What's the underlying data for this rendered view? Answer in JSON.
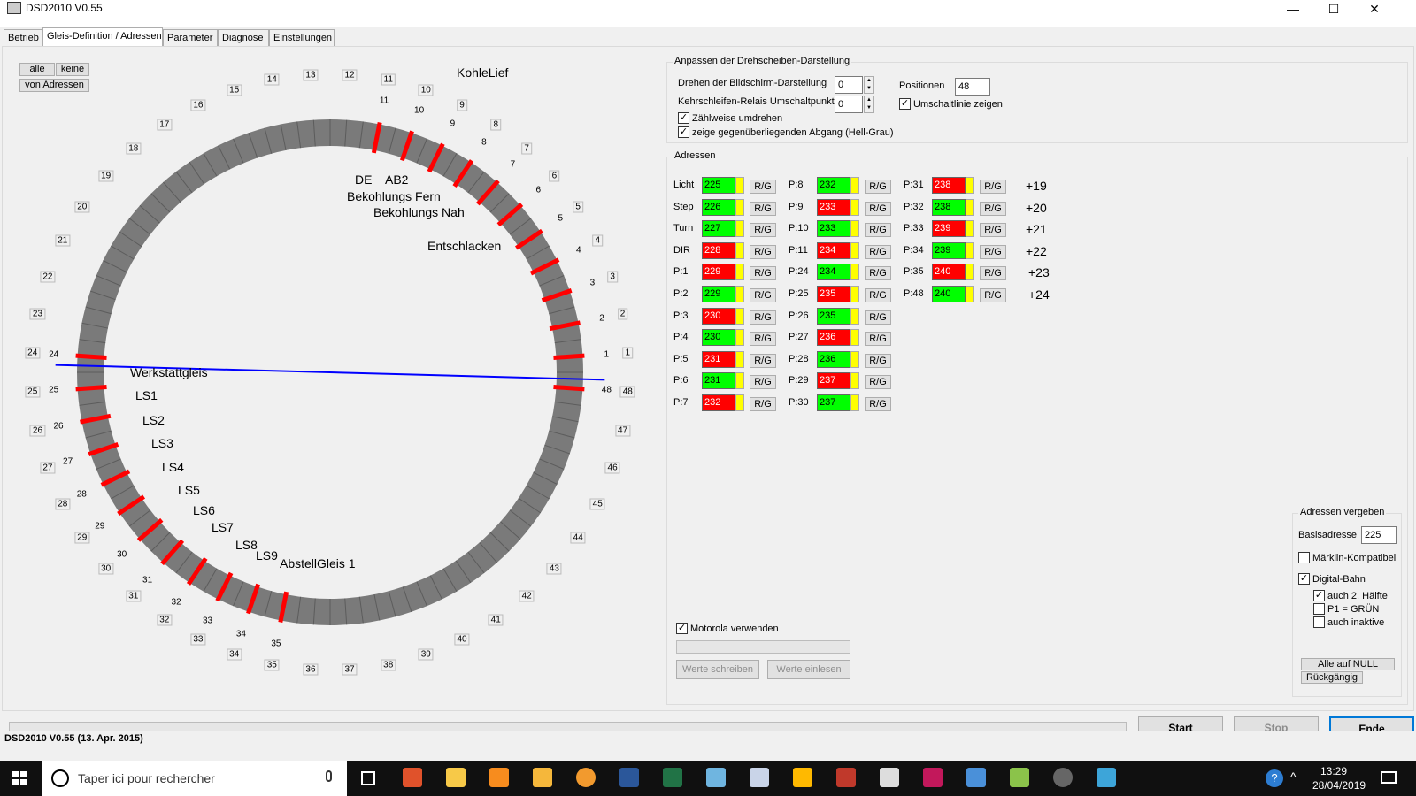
{
  "window": {
    "title": "DSD2010 V0.55",
    "minimize": "—",
    "maximize": "☐",
    "close": "✕"
  },
  "tabs": [
    "Betrieb",
    "Gleis-Definition / Adressen",
    "Parameter",
    "Diagnose",
    "Einstellungen"
  ],
  "left": {
    "btn_alle": "alle",
    "btn_keine": "keine",
    "btn_von": "von Adressen",
    "positions": 48,
    "tracks": [
      1,
      2,
      3,
      4,
      5,
      6,
      7,
      8,
      9,
      10,
      11,
      24,
      25,
      26,
      27,
      28,
      29,
      30,
      31,
      32,
      33,
      34,
      35,
      48
    ],
    "track_names": {
      "KohleLief": "KohleLief",
      "DE": "DE",
      "AB2": "AB2",
      "fern": "Bekohlungs Fern",
      "nah": "Bekohlungs Nah",
      "entschl": "Entschlacken",
      "werk": "Werkstattgleis",
      "ls1": "LS1",
      "ls2": "LS2",
      "ls3": "LS3",
      "ls4": "LS4",
      "ls5": "LS5",
      "ls6": "LS6",
      "ls7": "LS7",
      "ls8": "LS8",
      "ls9": "LS9",
      "abst": "AbstellGleis 1"
    },
    "colors": {
      "ring": "#7a7a7a",
      "track": "#ff0000",
      "line": "#0000ff"
    }
  },
  "display": {
    "title": "Anpassen der Drehscheiben-Darstellung",
    "rotate_label": "Drehen der Bildschirm-Darstellung",
    "rotate_value": "0",
    "relay_label": "Kehrschleifen-Relais Umschaltpunkt",
    "relay_value": "0",
    "positions_label": "Positionen",
    "positions_value": "48",
    "switchline_label": "Umschaltlinie zeigen",
    "count_label": "Zählweise umdrehen",
    "opposite_label": "zeige gegenüberliegenden Abgang (Hell-Grau)"
  },
  "addresses": {
    "title": "Adressen",
    "rg": "R/G",
    "col1": [
      {
        "label": "Licht",
        "value": "225",
        "color": "g"
      },
      {
        "label": "Step",
        "value": "226",
        "color": "g"
      },
      {
        "label": "Turn",
        "value": "227",
        "color": "g"
      },
      {
        "label": "DIR",
        "value": "228",
        "color": "r"
      },
      {
        "label": "P:1",
        "value": "229",
        "color": "r"
      },
      {
        "label": "P:2",
        "value": "229",
        "color": "g"
      },
      {
        "label": "P:3",
        "value": "230",
        "color": "r"
      },
      {
        "label": "P:4",
        "value": "230",
        "color": "g"
      },
      {
        "label": "P:5",
        "value": "231",
        "color": "r"
      },
      {
        "label": "P:6",
        "value": "231",
        "color": "g"
      },
      {
        "label": "P:7",
        "value": "232",
        "color": "r"
      }
    ],
    "col2": [
      {
        "label": "P:8",
        "value": "232",
        "color": "g"
      },
      {
        "label": "P:9",
        "value": "233",
        "color": "r"
      },
      {
        "label": "P:10",
        "value": "233",
        "color": "g"
      },
      {
        "label": "P:11",
        "value": "234",
        "color": "r"
      },
      {
        "label": "P:24",
        "value": "234",
        "color": "g"
      },
      {
        "label": "P:25",
        "value": "235",
        "color": "r"
      },
      {
        "label": "P:26",
        "value": "235",
        "color": "g"
      },
      {
        "label": "P:27",
        "value": "236",
        "color": "r"
      },
      {
        "label": "P:28",
        "value": "236",
        "color": "g"
      },
      {
        "label": "P:29",
        "value": "237",
        "color": "r"
      },
      {
        "label": "P:30",
        "value": "237",
        "color": "g"
      }
    ],
    "col3": [
      {
        "label": "P:31",
        "value": "238",
        "color": "r"
      },
      {
        "label": "P:32",
        "value": "238",
        "color": "g"
      },
      {
        "label": "P:33",
        "value": "239",
        "color": "r"
      },
      {
        "label": "P:34",
        "value": "239",
        "color": "g"
      },
      {
        "label": "P:35",
        "value": "240",
        "color": "r"
      },
      {
        "label": "P:48",
        "value": "240",
        "color": "g"
      }
    ],
    "offsets": [
      "+19",
      "+20",
      "+21",
      "+22",
      "+23",
      "+24"
    ],
    "motorola": "Motorola verwenden",
    "write_btn": "Werte schreiben",
    "read_btn": "Werte einlesen"
  },
  "assign": {
    "title": "Adressen vergeben",
    "base_label": "Basisadresse",
    "base_value": "225",
    "maerklin": "Märklin-Kompatibel",
    "digital": "Digital-Bahn",
    "half": "auch 2. Hälfte",
    "p1": "P1 = GRÜN",
    "inactive": "auch inaktive",
    "null_btn": "Alle auf NULL",
    "undo_btn": "Rückgängig"
  },
  "bottom": {
    "start": "Start",
    "stop": "Stop",
    "end": "Ende"
  },
  "status": "DSD2010 V0.55 (13. Apr. 2015)",
  "taskbar": {
    "search": "Taper ici pour rechercher",
    "time": "13:29",
    "date": "28/04/2019"
  }
}
